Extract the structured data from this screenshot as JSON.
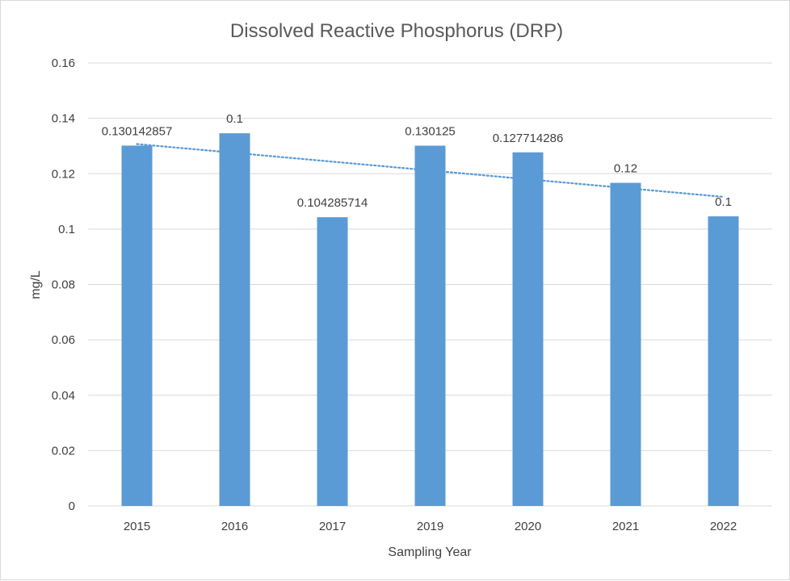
{
  "chart_data": {
    "type": "bar",
    "title": "Dissolved Reactive Phosphorus (DRP)",
    "xlabel": "Sampling Year",
    "ylabel": "mg/L",
    "categories": [
      "2015",
      "2016",
      "2017",
      "2019",
      "2020",
      "2021",
      "2022"
    ],
    "values": [
      0.130142857,
      0.1346,
      0.104285714,
      0.130125,
      0.127714286,
      0.1167,
      0.1046
    ],
    "data_labels": [
      "0.130142857",
      "0.1",
      "0.104285714",
      "0.130125",
      "0.127714286",
      "0.12",
      "0.1"
    ],
    "ylim": [
      0,
      0.16
    ],
    "yticks": [
      "0",
      "0.02",
      "0.04",
      "0.06",
      "0.08",
      "0.1",
      "0.12",
      "0.14",
      "0.16"
    ],
    "grid": true,
    "legend": "none",
    "trendline": {
      "type": "linear",
      "style": "dotted"
    },
    "colors": {
      "bar": "#5b9bd5",
      "trendline": "#5b9bd5",
      "grid": "#d9d9d9"
    }
  }
}
